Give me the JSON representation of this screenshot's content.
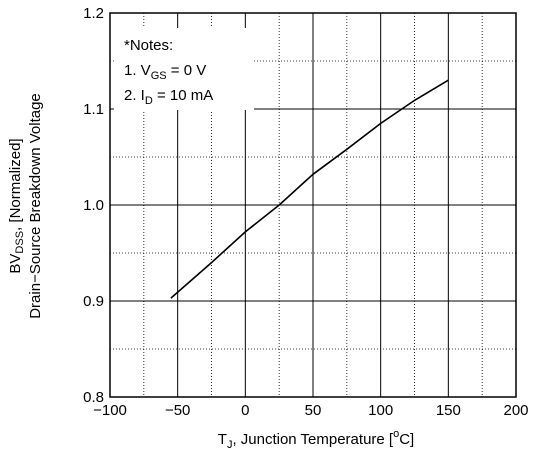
{
  "chart_data": {
    "type": "line",
    "x": [
      -55,
      -25,
      0,
      25,
      50,
      75,
      100,
      125,
      150
    ],
    "series": [
      {
        "values": [
          0.903,
          0.94,
          0.972,
          1.0,
          1.032,
          1.058,
          1.085,
          1.109,
          1.13
        ]
      }
    ],
    "xlim": [
      -100,
      200
    ],
    "ylim": [
      0.8,
      1.2
    ],
    "x_ticks": [
      -100,
      -50,
      0,
      50,
      100,
      150,
      200
    ],
    "y_ticks": [
      0.8,
      0.9,
      1.0,
      1.1,
      1.2
    ],
    "x_tick_labels": [
      "−100",
      "−50",
      "0",
      "50",
      "100",
      "150",
      "200"
    ],
    "y_tick_labels": [
      "0.8",
      "0.9",
      "1.0",
      "1.1",
      "1.2"
    ],
    "xlabel": {
      "main": "T",
      "sub": "J",
      "rest": ", Junction Temperature [",
      "sup": "o",
      "end": "C]"
    },
    "ylabel": {
      "line1_main": "BV",
      "line1_sub": "DSS",
      "line1_rest": ", [Normalized]",
      "line2": "Drain−Source Breakdown Voltage"
    },
    "notes": {
      "title": "*Notes:",
      "note1_prefix": "1. V",
      "note1_sub": "GS",
      "note1_rest": " = 0 V",
      "note2_prefix": "2. I",
      "note2_sub": "D",
      "note2_rest": " = 10 mA"
    },
    "grid": true,
    "minor_grid_dotted": true
  }
}
